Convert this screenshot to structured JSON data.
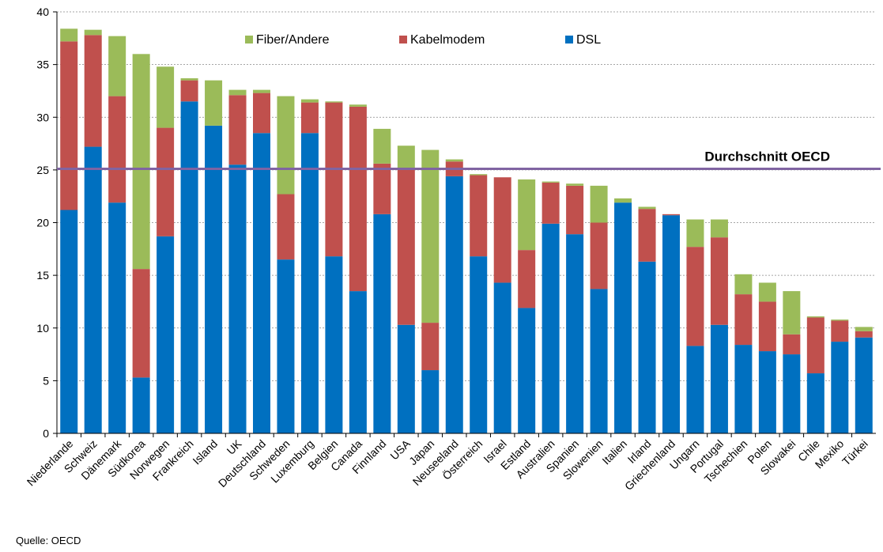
{
  "chart_data": {
    "type": "stacked_bar",
    "categories": [
      "Niederlande",
      "Schweiz",
      "Dänemark",
      "Südkorea",
      "Norwegen",
      "Frankreich",
      "Island",
      "UK",
      "Deutschland",
      "Schweden",
      "Luxemburg",
      "Belgien",
      "Canada",
      "Finnland",
      "USA",
      "Japan",
      "Neuseeland",
      "Österreich",
      "Israel",
      "Estland",
      "Australien",
      "Spanien",
      "Slowenien",
      "Italien",
      "Irland",
      "Griechenland",
      "Ungarn",
      "Portugal",
      "Tschechien",
      "Polen",
      "Slowakei",
      "Chile",
      "Mexiko",
      "Türkei"
    ],
    "series": [
      {
        "name": "DSL",
        "color": "#0070c0",
        "values": [
          21.2,
          27.2,
          21.9,
          5.3,
          18.7,
          31.5,
          29.2,
          25.5,
          28.5,
          16.5,
          28.5,
          16.8,
          13.5,
          20.8,
          10.3,
          6.0,
          24.4,
          16.8,
          14.3,
          11.9,
          19.9,
          18.9,
          13.7,
          21.9,
          16.3,
          20.7,
          8.3,
          10.3,
          8.4,
          7.8,
          7.5,
          5.7,
          8.7,
          9.1
        ]
      },
      {
        "name": "Kabelmodem",
        "color": "#c0504d",
        "values": [
          16.0,
          10.6,
          10.1,
          10.3,
          10.3,
          2.0,
          0,
          6.6,
          3.8,
          6.2,
          2.9,
          14.6,
          17.5,
          4.8,
          14.7,
          4.5,
          1.4,
          7.7,
          10.0,
          5.5,
          3.9,
          4.6,
          6.3,
          0,
          5.0,
          0.1,
          9.4,
          8.3,
          4.8,
          4.7,
          1.9,
          5.3,
          2.0,
          0.6
        ]
      },
      {
        "name": "Fiber/Andere",
        "color": "#9bbb59",
        "values": [
          1.2,
          0.5,
          5.7,
          20.4,
          5.8,
          0.2,
          4.3,
          0.5,
          0.3,
          9.3,
          0.3,
          0.1,
          0.2,
          3.3,
          2.3,
          16.4,
          0.2,
          0.1,
          0,
          6.7,
          0.1,
          0.2,
          3.5,
          0.4,
          0.2,
          0,
          2.6,
          1.7,
          1.9,
          1.8,
          4.1,
          0.1,
          0.1,
          0.4
        ]
      }
    ],
    "average": 25.1,
    "average_label": "Durchschnitt OECD",
    "average_color": "#8064a2",
    "ylim": [
      0,
      40
    ],
    "yticks": [
      0,
      5,
      10,
      15,
      20,
      25,
      30,
      35,
      40
    ],
    "grid": true,
    "source": "Quelle: OECD"
  }
}
